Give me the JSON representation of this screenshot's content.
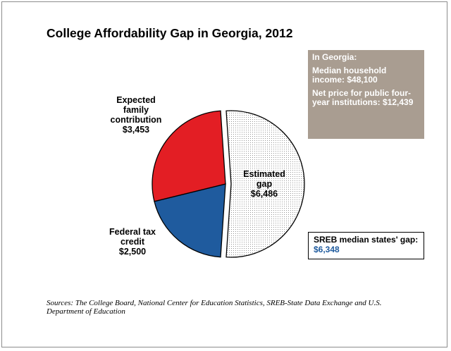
{
  "chart_data": {
    "type": "pie",
    "title": "College Affordability Gap in Georgia, 2012",
    "slices": [
      {
        "label": "Expected family contribution",
        "value": 3453,
        "value_label": "$3,453",
        "color": "#e31e24",
        "display": "Expected\nfamily\ncontribution\n$3,453"
      },
      {
        "label": "Federal tax credit",
        "value": 2500,
        "value_label": "$2,500",
        "color": "#1f5b9e",
        "display": "Federal tax\ncredit\n$2,500"
      },
      {
        "label": "Estimated gap",
        "value": 6486,
        "value_label": "$6,486",
        "color": "#ffffff",
        "pattern": "dotted",
        "exploded": true,
        "display": "Estimated\ngap\n$6,486"
      }
    ]
  },
  "info_box": {
    "heading": "In Georgia:",
    "line1": "Median household income: $48,100",
    "line2": "Net price for public four-year institutions: $12,439"
  },
  "sreb_box": {
    "label": "SREB median states' gap: ",
    "value": "$6,348"
  },
  "sources": "Sources: The College Board, National Center for Education Statistics, SREB-State Data Exchange and U.S. Department of Education"
}
